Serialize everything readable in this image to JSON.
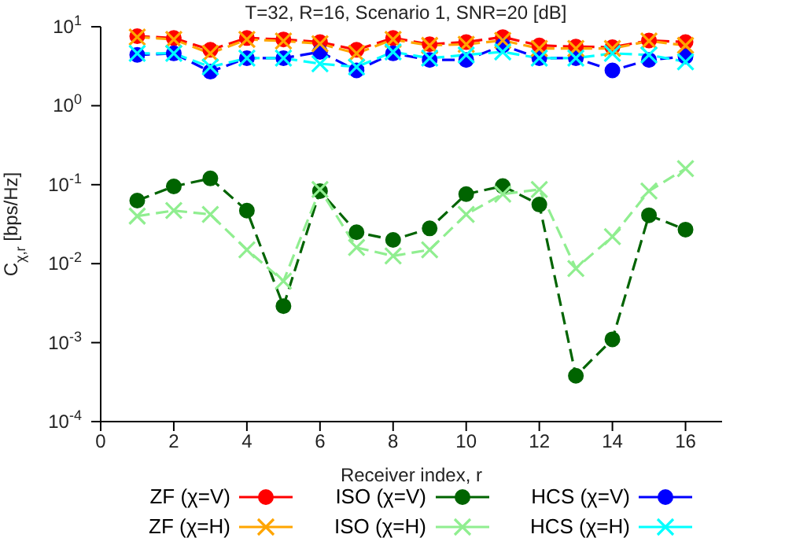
{
  "chart_data": {
    "type": "line",
    "title": "T=32, R=16, Scenario 1, SNR=20 [dB]",
    "xlabel": "Receiver index, r",
    "ylabel": "C$_{χ,r}$ [bps/Hz]",
    "x": [
      1,
      2,
      3,
      4,
      5,
      6,
      7,
      8,
      9,
      10,
      11,
      12,
      13,
      14,
      15,
      16
    ],
    "xlim": [
      0,
      17
    ],
    "xticks": [
      0,
      2,
      4,
      6,
      8,
      10,
      12,
      14,
      16
    ],
    "ylim": [
      0.0001,
      10
    ],
    "log": true,
    "yticks": [
      {
        "value": 0.0001,
        "label": "10$^{-4}$"
      },
      {
        "value": 0.001,
        "label": "10$^{-3}$"
      },
      {
        "value": 0.01,
        "label": "10$^{-2}$"
      },
      {
        "value": 0.1,
        "label": "10$^{-1}$"
      },
      {
        "value": 1,
        "label": "10$^{0}$"
      },
      {
        "value": 10,
        "label": "10$^{1}$"
      }
    ],
    "grid": false,
    "legend": "bottom",
    "line_style": "dashed",
    "series": [
      {
        "name": "ZF (χ=V)",
        "color": "#ff0000",
        "marker": "circle",
        "values": [
          7.6,
          7.2,
          5.1,
          7.2,
          6.9,
          6.4,
          5.1,
          7.2,
          6.0,
          6.4,
          7.4,
          5.8,
          5.6,
          5.5,
          6.7,
          6.4
        ]
      },
      {
        "name": "ISO (χ=V)",
        "color": "#006400",
        "marker": "circle",
        "values": [
          0.063,
          0.095,
          0.12,
          0.047,
          0.0029,
          0.083,
          0.025,
          0.02,
          0.028,
          0.076,
          0.096,
          0.056,
          0.00038,
          0.0011,
          0.041,
          0.027
        ]
      },
      {
        "name": "HCS (χ=V)",
        "color": "#0000ff",
        "marker": "circle",
        "values": [
          4.4,
          4.6,
          2.7,
          4.0,
          4.0,
          4.8,
          2.8,
          4.6,
          3.8,
          3.8,
          5.8,
          4.0,
          4.0,
          2.8,
          3.8,
          4.2
        ]
      },
      {
        "name": "ZF (χ=H)",
        "color": "#ffa500",
        "marker": "cross",
        "values": [
          7.4,
          6.9,
          4.6,
          6.9,
          6.6,
          6.1,
          4.6,
          6.9,
          5.8,
          6.0,
          6.7,
          5.3,
          5.3,
          5.3,
          6.6,
          5.8
        ]
      },
      {
        "name": "ISO (χ=H)",
        "color": "#90ee90",
        "marker": "cross",
        "values": [
          0.04,
          0.047,
          0.042,
          0.015,
          0.006,
          0.087,
          0.016,
          0.0125,
          0.015,
          0.042,
          0.076,
          0.087,
          0.0087,
          0.022,
          0.083,
          0.16
        ]
      },
      {
        "name": "HCS (χ=H)",
        "color": "#00ffff",
        "marker": "cross",
        "values": [
          4.6,
          4.6,
          3.1,
          4.0,
          4.0,
          3.4,
          3.1,
          4.8,
          4.0,
          4.4,
          4.8,
          4.0,
          4.0,
          4.6,
          4.4,
          3.6
        ]
      }
    ]
  }
}
